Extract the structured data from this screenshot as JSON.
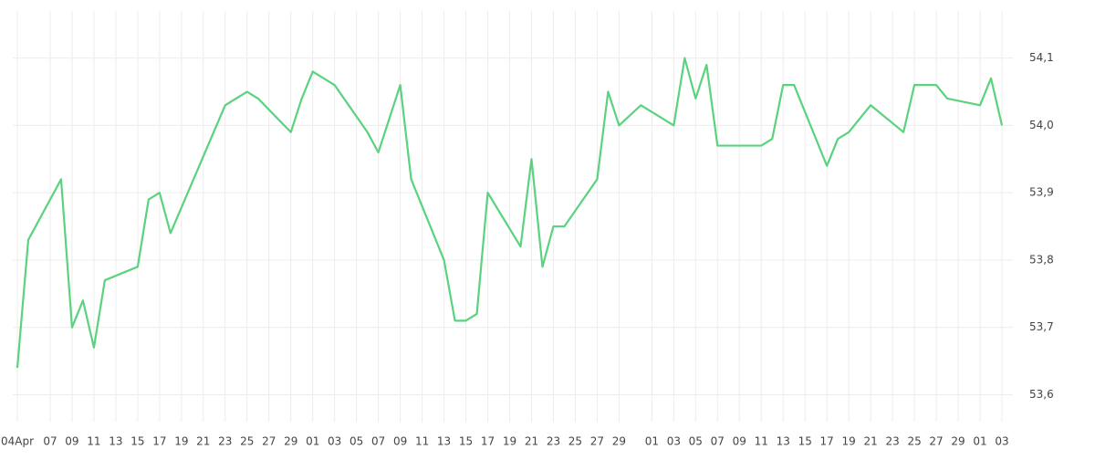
{
  "chart_data": {
    "type": "line",
    "x": [
      "04-04",
      "04-05",
      "04-08",
      "04-09",
      "04-10",
      "04-11",
      "04-12",
      "04-15",
      "04-16",
      "04-17",
      "04-18",
      "04-23",
      "04-25",
      "04-26",
      "04-29",
      "04-30",
      "05-01",
      "05-03",
      "05-06",
      "05-07",
      "05-09",
      "05-10",
      "05-13",
      "05-14",
      "05-15",
      "05-16",
      "05-17",
      "05-20",
      "05-21",
      "05-22",
      "05-23",
      "05-24",
      "05-27",
      "05-28",
      "05-29",
      "05-31",
      "06-03",
      "06-04",
      "06-05",
      "06-06",
      "06-07",
      "06-11",
      "06-12",
      "06-13",
      "06-14",
      "06-17",
      "06-18",
      "06-19",
      "06-21",
      "06-24",
      "06-25",
      "06-27",
      "06-28",
      "07-01",
      "07-02",
      "07-03"
    ],
    "series": [
      {
        "color": "#5ad27e",
        "values": [
          53.64,
          53.83,
          53.92,
          53.7,
          53.74,
          53.67,
          53.77,
          53.79,
          53.89,
          53.9,
          53.84,
          54.03,
          54.05,
          54.04,
          53.99,
          54.04,
          54.08,
          54.06,
          53.99,
          53.96,
          54.06,
          53.92,
          53.8,
          53.71,
          53.71,
          53.72,
          53.9,
          53.82,
          53.95,
          53.79,
          53.85,
          53.85,
          53.92,
          54.05,
          54.0,
          54.03,
          54.0,
          54.1,
          54.04,
          54.09,
          53.97,
          53.97,
          53.98,
          54.06,
          54.06,
          53.94,
          53.98,
          53.99,
          54.03,
          53.99,
          54.06,
          54.06,
          54.04,
          54.03,
          54.07,
          54.0
        ]
      }
    ],
    "xlim": [
      "04-04",
      "07-04"
    ],
    "xticks": [
      {
        "value": "04-04",
        "label": "04Apr"
      },
      {
        "value": "04-07",
        "label": "07"
      },
      {
        "value": "04-09",
        "label": "09"
      },
      {
        "value": "04-11",
        "label": "11"
      },
      {
        "value": "04-13",
        "label": "13"
      },
      {
        "value": "04-15",
        "label": "15"
      },
      {
        "value": "04-17",
        "label": "17"
      },
      {
        "value": "04-19",
        "label": "19"
      },
      {
        "value": "04-21",
        "label": "21"
      },
      {
        "value": "04-23",
        "label": "23"
      },
      {
        "value": "04-25",
        "label": "25"
      },
      {
        "value": "04-27",
        "label": "27"
      },
      {
        "value": "04-29",
        "label": "29"
      },
      {
        "value": "05-01",
        "label": "01"
      },
      {
        "value": "05-03",
        "label": "03"
      },
      {
        "value": "05-05",
        "label": "05"
      },
      {
        "value": "05-07",
        "label": "07"
      },
      {
        "value": "05-09",
        "label": "09"
      },
      {
        "value": "05-11",
        "label": "11"
      },
      {
        "value": "05-13",
        "label": "13"
      },
      {
        "value": "05-15",
        "label": "15"
      },
      {
        "value": "05-17",
        "label": "17"
      },
      {
        "value": "05-19",
        "label": "19"
      },
      {
        "value": "05-21",
        "label": "21"
      },
      {
        "value": "05-23",
        "label": "23"
      },
      {
        "value": "05-25",
        "label": "25"
      },
      {
        "value": "05-27",
        "label": "27"
      },
      {
        "value": "05-29",
        "label": "29"
      },
      {
        "value": "06-01",
        "label": "01"
      },
      {
        "value": "06-03",
        "label": "03"
      },
      {
        "value": "06-05",
        "label": "05"
      },
      {
        "value": "06-07",
        "label": "07"
      },
      {
        "value": "06-09",
        "label": "09"
      },
      {
        "value": "06-11",
        "label": "11"
      },
      {
        "value": "06-13",
        "label": "13"
      },
      {
        "value": "06-15",
        "label": "15"
      },
      {
        "value": "06-17",
        "label": "17"
      },
      {
        "value": "06-19",
        "label": "19"
      },
      {
        "value": "06-21",
        "label": "21"
      },
      {
        "value": "06-23",
        "label": "23"
      },
      {
        "value": "06-25",
        "label": "25"
      },
      {
        "value": "06-27",
        "label": "27"
      },
      {
        "value": "06-29",
        "label": "29"
      },
      {
        "value": "07-01",
        "label": "01"
      },
      {
        "value": "07-03",
        "label": "03"
      }
    ],
    "ylim": [
      53.56,
      54.17
    ],
    "yticks": [
      {
        "value": 53.6,
        "label": "53,6"
      },
      {
        "value": 53.7,
        "label": "53,7"
      },
      {
        "value": 53.8,
        "label": "53,8"
      },
      {
        "value": 53.9,
        "label": "53,9"
      },
      {
        "value": 54.0,
        "label": "54,0"
      },
      {
        "value": 54.1,
        "label": "54,1"
      }
    ],
    "grid": true
  }
}
